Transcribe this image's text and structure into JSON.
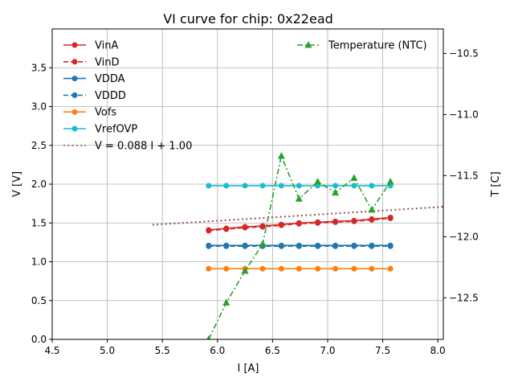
{
  "chart_data": {
    "type": "line",
    "title": "VI curve for chip: 0x22ead",
    "xlabel": "I [A]",
    "ylabel": "V [V]",
    "y2label": "T [C]",
    "xlim": [
      4.5,
      8.05
    ],
    "ylim": [
      0.0,
      4.0
    ],
    "y2lim": [
      -12.84,
      -10.3
    ],
    "xticks": [
      4.5,
      5.0,
      5.5,
      6.0,
      6.5,
      7.0,
      7.5,
      8.0
    ],
    "xtick_labels": [
      "4.5",
      "5.0",
      "5.5",
      "6.0",
      "6.5",
      "7.0",
      "7.5",
      "8.0"
    ],
    "yticks": [
      0.0,
      0.5,
      1.0,
      1.5,
      2.0,
      2.5,
      3.0,
      3.5
    ],
    "ytick_labels": [
      "0.0",
      "0.5",
      "1.0",
      "1.5",
      "2.0",
      "2.5",
      "3.0",
      "3.5"
    ],
    "y2ticks": [
      -10.5,
      -11.0,
      -11.5,
      -12.0,
      -12.5
    ],
    "y2tick_labels": [
      "−10.5",
      "−11.0",
      "−11.5",
      "−12.0",
      "−12.5"
    ],
    "grid": true,
    "legend_position": "top-left",
    "legend2_position": "top-right",
    "x": [
      5.92,
      6.08,
      6.25,
      6.41,
      6.58,
      6.74,
      6.91,
      7.07,
      7.24,
      7.4,
      7.57
    ],
    "series": [
      {
        "name": "VinA",
        "color": "#d62728",
        "style": "solid",
        "marker": "circle",
        "axis": "left",
        "values": [
          1.41,
          1.43,
          1.45,
          1.46,
          1.48,
          1.5,
          1.51,
          1.52,
          1.53,
          1.55,
          1.57
        ]
      },
      {
        "name": "VinD",
        "color": "#d62728",
        "style": "dashed",
        "marker": "circle",
        "axis": "left",
        "values": [
          1.4,
          1.42,
          1.44,
          1.45,
          1.47,
          1.49,
          1.5,
          1.51,
          1.52,
          1.54,
          1.56
        ]
      },
      {
        "name": "VDDA",
        "color": "#1f77b4",
        "style": "solid",
        "marker": "circle",
        "axis": "left",
        "values": [
          1.21,
          1.21,
          1.21,
          1.21,
          1.21,
          1.21,
          1.21,
          1.21,
          1.21,
          1.21,
          1.21
        ]
      },
      {
        "name": "VDDD",
        "color": "#1f77b4",
        "style": "dashed",
        "marker": "circle",
        "axis": "left",
        "values": [
          1.2,
          1.2,
          1.2,
          1.2,
          1.2,
          1.2,
          1.2,
          1.2,
          1.2,
          1.2,
          1.2
        ]
      },
      {
        "name": "Vofs",
        "color": "#ff7f0e",
        "style": "solid",
        "marker": "circle",
        "axis": "left",
        "values": [
          0.91,
          0.91,
          0.91,
          0.91,
          0.91,
          0.91,
          0.91,
          0.91,
          0.91,
          0.91,
          0.91
        ]
      },
      {
        "name": "VrefOVP",
        "color": "#17becf",
        "style": "solid",
        "marker": "circle",
        "axis": "left",
        "values": [
          1.98,
          1.98,
          1.98,
          1.98,
          1.98,
          1.98,
          1.98,
          1.98,
          1.98,
          1.98,
          1.98
        ]
      },
      {
        "name": "Temperature (NTC)",
        "color": "#2ca02c",
        "style": "dashdot",
        "marker": "triangle",
        "axis": "right",
        "values": [
          -12.84,
          -12.54,
          -12.28,
          -12.06,
          -11.34,
          -11.69,
          -11.55,
          -11.64,
          -11.52,
          -11.78,
          -11.55
        ]
      }
    ],
    "fit": {
      "name": "V = 0.088 I + 1.00",
      "color": "#8c564b",
      "style": "dotted",
      "slope": 0.088,
      "intercept": 1.0,
      "x_range": [
        5.41,
        8.05
      ]
    }
  }
}
